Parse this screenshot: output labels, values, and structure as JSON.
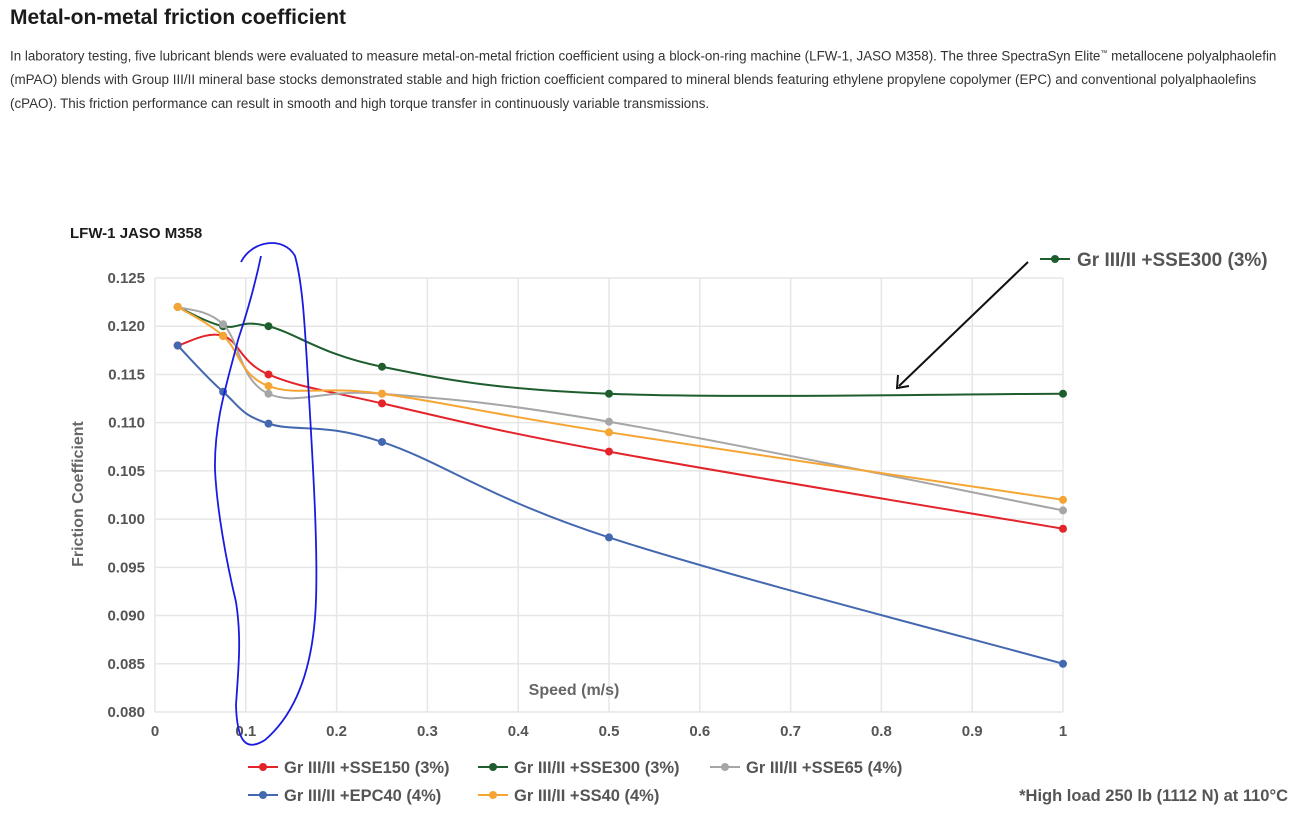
{
  "page": {
    "title": "Metal-on-metal friction coefficient",
    "intro_before_tm": "In laboratory testing, five lubricant blends were evaluated to measure metal-on-metal friction coefficient using a block-on-ring machine (LFW-1, JASO M358). The three SpectraSyn Elite",
    "intro_tm": "™",
    "intro_after_tm": " metallocene polyalphaolefin (mPAO) blends with Group III/II mineral base stocks demonstrated stable and high friction coefficient compared to mineral blends featuring ethylene propylene copolymer (EPC) and conventional polyalphaolefins (cPAO). This friction performance can result in smooth and high torque transfer in continuously variable transmissions."
  },
  "chart_data": {
    "type": "line",
    "title": "LFW-1 JASO M358",
    "xlabel": "Speed (m/s)",
    "ylabel": "Friction Coefficient",
    "xlim": [
      0,
      1
    ],
    "ylim": [
      0.08,
      0.125
    ],
    "x_ticks": [
      "0",
      "0.1",
      "0.2",
      "0.3",
      "0.4",
      "0.5",
      "0.6",
      "0.7",
      "0.8",
      "0.9",
      "1"
    ],
    "y_ticks": [
      "0.125",
      "0.120",
      "0.115",
      "0.110",
      "0.105",
      "0.100",
      "0.095",
      "0.090",
      "0.085",
      "0.080"
    ],
    "grid": true,
    "legend_position": "bottom",
    "x": [
      0.025,
      0.075,
      0.125,
      0.25,
      0.5,
      1.0
    ],
    "series": [
      {
        "name": "Gr III/II +SSE150 (3%)",
        "color": "#e3242b",
        "values": [
          0.118,
          0.119,
          0.115,
          0.112,
          0.107,
          0.099
        ]
      },
      {
        "name": "Gr III/II +SSE300 (3%)",
        "color": "#1e5e2e",
        "values": [
          0.122,
          0.12,
          0.12,
          0.1158,
          0.113,
          0.113
        ]
      },
      {
        "name": "Gr III/II +SSE65 (4%)",
        "color": "#a6a6a6",
        "values": [
          0.122,
          0.1202,
          0.113,
          0.113,
          0.1101,
          0.1009
        ]
      },
      {
        "name": "Gr III/II +EPC40 (4%)",
        "color": "#4468b0",
        "values": [
          0.118,
          0.1132,
          0.1099,
          0.108,
          0.0981,
          0.085
        ]
      },
      {
        "name": "Gr III/II +SS40 (4%)",
        "color": "#f5a534",
        "values": [
          0.122,
          0.119,
          0.1138,
          0.113,
          0.109,
          0.102
        ]
      }
    ],
    "callout_label": "Gr III/II +SSE300 (3%)",
    "footnote": "*High load 250 lb (1112 N) at 110°C",
    "annotations": {
      "arrow_color": "#111111",
      "hand_drawn_ellipse_color": "#1a1ae0"
    }
  }
}
